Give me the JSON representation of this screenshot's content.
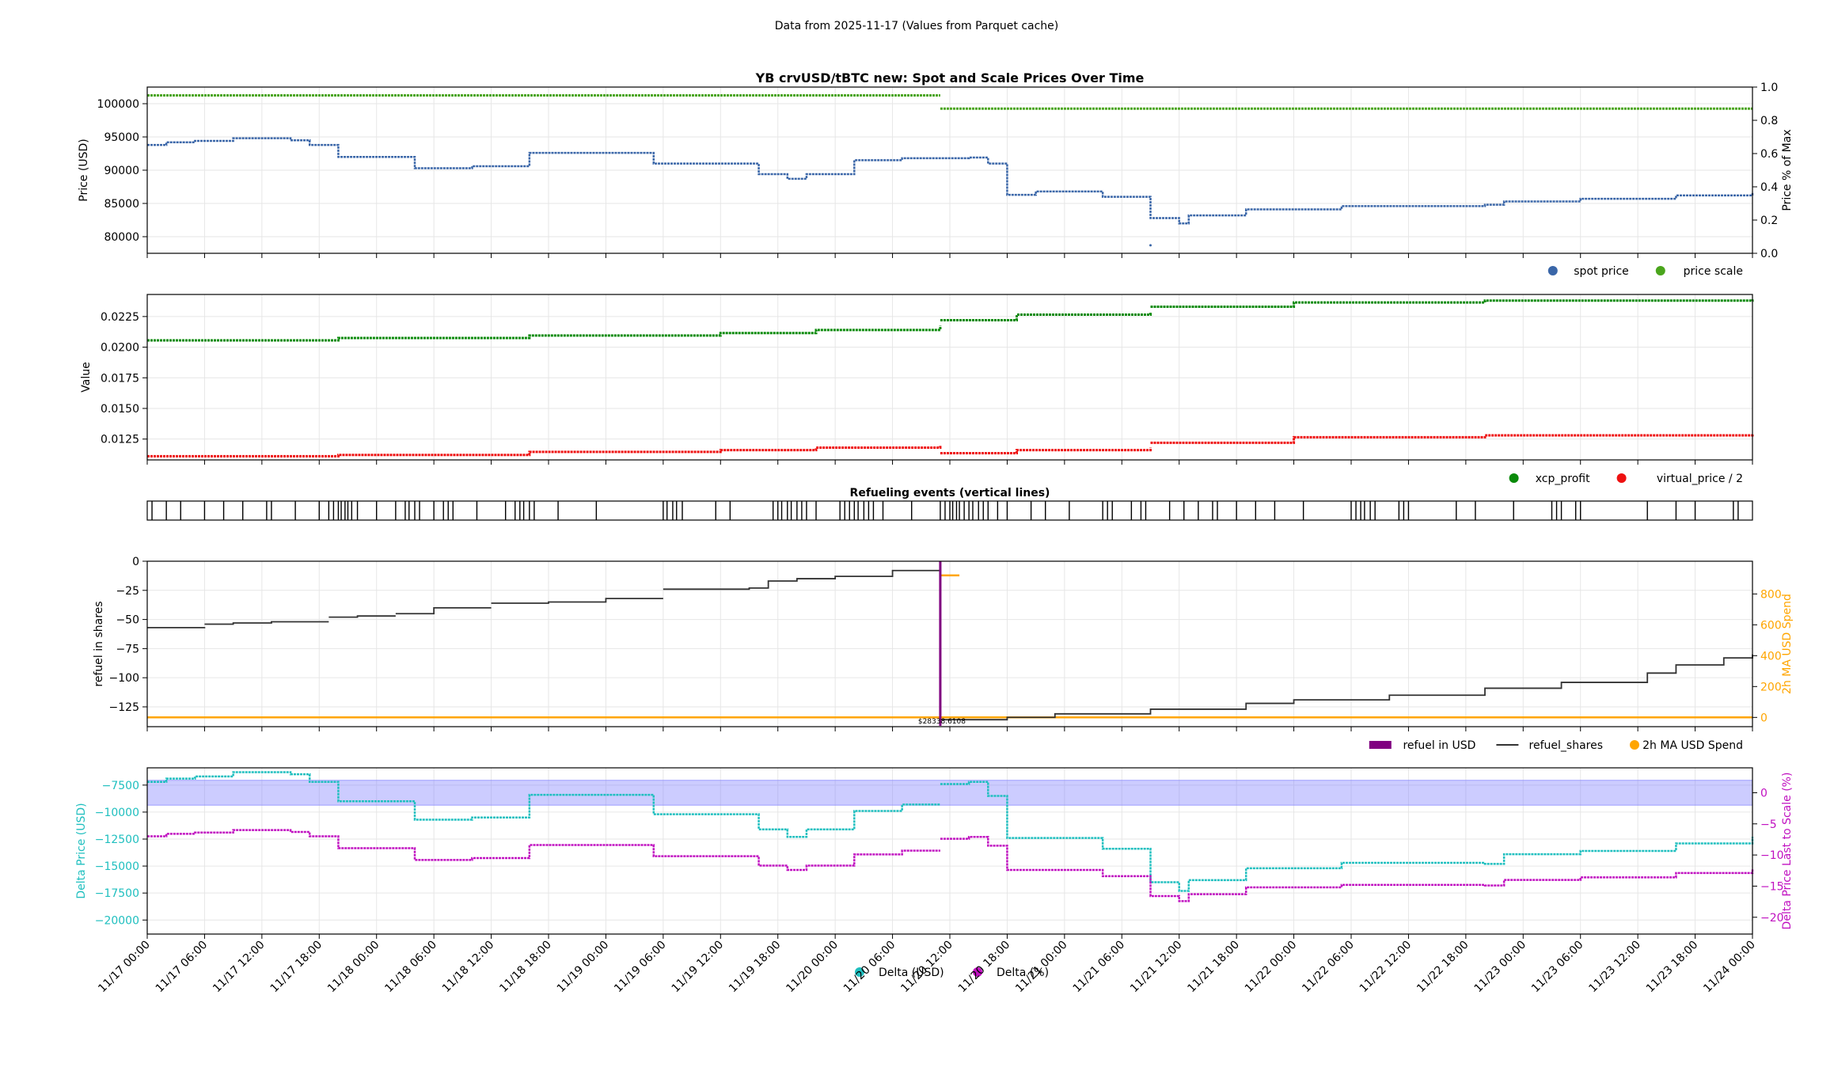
{
  "suptitle": "Data from 2025-11-17 (Values from Parquet cache)",
  "colors": {
    "spot": "#3a66a8",
    "scale": "#4aa51c",
    "xcp": "#0a8a0a",
    "vp": "#ee1111",
    "refuel_usd": "#800080",
    "shares": "#333333",
    "ma": "#ffa500",
    "delta_usd": "#1fbfbf",
    "delta_pct": "#c010c0",
    "band": "#8080ff",
    "grid": "#e6e6e6"
  },
  "x_ticks": [
    "11/17 00:00",
    "11/17 06:00",
    "11/17 12:00",
    "11/17 18:00",
    "11/18 00:00",
    "11/18 06:00",
    "11/18 12:00",
    "11/18 18:00",
    "11/19 00:00",
    "11/19 06:00",
    "11/19 12:00",
    "11/19 18:00",
    "11/20 00:00",
    "11/20 06:00",
    "11/20 12:00",
    "11/20 18:00",
    "11/21 00:00",
    "11/21 06:00",
    "11/21 12:00",
    "11/21 18:00",
    "11/22 00:00",
    "11/22 06:00",
    "11/22 12:00",
    "11/22 18:00",
    "11/23 00:00",
    "11/23 06:00",
    "11/23 12:00",
    "11/23 18:00",
    "11/24 00:00"
  ],
  "chart_data": [
    {
      "type": "scatter",
      "title": "YB crvUSD/tBTC new: Spot and Scale Prices Over Time",
      "ylabel": "Price (USD)",
      "y2label": "Price % of Max",
      "ylim": [
        77500,
        102500
      ],
      "y2lim": [
        0.0,
        1.0
      ],
      "yticks": [
        "80000",
        "85000",
        "90000",
        "95000",
        "100000"
      ],
      "y2ticks": [
        "0.0",
        "0.2",
        "0.4",
        "0.6",
        "0.8",
        "1.0"
      ],
      "legend": [
        "spot price",
        "price scale"
      ],
      "legend_position": "lower-right",
      "series": [
        {
          "name": "spot price",
          "axis": "left",
          "values": [
            [
              0,
              93800
            ],
            [
              2,
              94200
            ],
            [
              5,
              94400
            ],
            [
              9,
              94800
            ],
            [
              15,
              94500
            ],
            [
              17,
              93800
            ],
            [
              20,
              92000
            ],
            [
              28,
              90300
            ],
            [
              34,
              90600
            ],
            [
              40,
              92600
            ],
            [
              53,
              91000
            ],
            [
              64,
              89400
            ],
            [
              67,
              88700
            ],
            [
              69,
              89400
            ],
            [
              74,
              91500
            ],
            [
              79,
              91800
            ],
            [
              86,
              91900
            ],
            [
              88,
              91000
            ],
            [
              90,
              86300
            ],
            [
              93,
              86800
            ],
            [
              100,
              86000
            ],
            [
              105,
              82800
            ],
            [
              108,
              82000
            ],
            [
              109,
              83200
            ],
            [
              115,
              84100
            ],
            [
              125,
              84600
            ],
            [
              140,
              84800
            ],
            [
              142,
              85300
            ],
            [
              150,
              85700
            ],
            [
              160,
              86200
            ],
            [
              168,
              86700
            ]
          ]
        },
        {
          "name": "price scale",
          "axis": "right",
          "values": [
            [
              0,
              0.95
            ],
            [
              83,
              0.95
            ],
            [
              83,
              0.87
            ],
            [
              168,
              0.87
            ]
          ]
        }
      ]
    },
    {
      "type": "scatter",
      "ylabel": "Value",
      "ylim": [
        0.0108,
        0.0243
      ],
      "yticks": [
        "0.0125",
        "0.0150",
        "0.0175",
        "0.0200",
        "0.0225"
      ],
      "legend": [
        "xcp_profit",
        "virtual_price / 2"
      ],
      "legend_position": "lower-right",
      "series": [
        {
          "name": "xcp_profit",
          "values": [
            [
              0,
              0.02055
            ],
            [
              20,
              0.02075
            ],
            [
              40,
              0.02095
            ],
            [
              60,
              0.02115
            ],
            [
              70,
              0.0214
            ],
            [
              83,
              0.02175
            ],
            [
              83,
              0.0222
            ],
            [
              91,
              0.02265
            ],
            [
              105,
              0.02285
            ],
            [
              105,
              0.0233
            ],
            [
              120,
              0.02365
            ],
            [
              140,
              0.0238
            ],
            [
              168,
              0.0239
            ]
          ]
        },
        {
          "name": "virtual_price / 2",
          "values": [
            [
              0,
              0.0111
            ],
            [
              20,
              0.0112
            ],
            [
              40,
              0.01145
            ],
            [
              60,
              0.0116
            ],
            [
              70,
              0.0118
            ],
            [
              83,
              0.012
            ],
            [
              83,
              0.01135
            ],
            [
              91,
              0.0116
            ],
            [
              105,
              0.0118
            ],
            [
              105,
              0.0122
            ],
            [
              120,
              0.01265
            ],
            [
              140,
              0.0128
            ],
            [
              168,
              0.0129
            ]
          ]
        }
      ]
    },
    {
      "type": "event_lines",
      "title": "Refueling events (vertical lines)",
      "events_hours": [
        0.5,
        2,
        3.5,
        6,
        8,
        10,
        12.5,
        13,
        15.5,
        18,
        19,
        19.5,
        20,
        20.3,
        20.7,
        21,
        21.4,
        22,
        24,
        26,
        27,
        27.4,
        28,
        28.5,
        30,
        31,
        31.5,
        32,
        34.5,
        37.5,
        38.5,
        39,
        39.4,
        40,
        40.5,
        43,
        47,
        54,
        54.4,
        55,
        55.4,
        56,
        59.5,
        61,
        65.5,
        66,
        66.4,
        67,
        67.4,
        68,
        68.5,
        69,
        70,
        72.5,
        73,
        73.5,
        74,
        74.4,
        75,
        75.5,
        76,
        77,
        80,
        83,
        83.5,
        84,
        84.3,
        84.7,
        85,
        85.5,
        86,
        86.4,
        87,
        87.5,
        88,
        89,
        90,
        92.5,
        94,
        96.5,
        100,
        100.5,
        101,
        103,
        104,
        104.5,
        107,
        108.5,
        110,
        111.5,
        112,
        114,
        116,
        118,
        121,
        126,
        126.5,
        127,
        127.4,
        128,
        128.5,
        131,
        131.5,
        132,
        137,
        139,
        143,
        147,
        147.5,
        148,
        149.5,
        150,
        157,
        160,
        162,
        166,
        166.5
      ]
    },
    {
      "type": "line",
      "ylabel": "refuel in shares",
      "y2label": "2h MA USD Spend",
      "ylim": [
        -142,
        0
      ],
      "y2lim": [
        -60,
        1012
      ],
      "yticks": [
        "−125",
        "−100",
        "−75",
        "−50",
        "−25",
        "0"
      ],
      "y2ticks": [
        "0",
        "200",
        "400",
        "600",
        "800"
      ],
      "legend": [
        "refuel in USD",
        "refuel_shares",
        "2h MA USD Spend"
      ],
      "legend_position": "lower-right",
      "annotation": "$28338.6108",
      "bar": {
        "name": "refuel in USD",
        "x": 83,
        "value": 28338.6108
      },
      "series": [
        {
          "name": "refuel_shares",
          "axis": "left",
          "values": [
            [
              0,
              -57
            ],
            [
              6,
              -56.5
            ],
            [
              6,
              -54
            ],
            [
              9,
              -53
            ],
            [
              13,
              -52
            ],
            [
              19,
              -52
            ],
            [
              19,
              -48
            ],
            [
              22,
              -47
            ],
            [
              26,
              -47
            ],
            [
              26,
              -45
            ],
            [
              30,
              -40
            ],
            [
              36,
              -40
            ],
            [
              36,
              -36
            ],
            [
              42,
              -35
            ],
            [
              48,
              -32
            ],
            [
              54,
              -32
            ],
            [
              54,
              -24
            ],
            [
              63,
              -23
            ],
            [
              65,
              -17
            ],
            [
              68,
              -15
            ],
            [
              72,
              -13
            ],
            [
              78,
              -8
            ],
            [
              83,
              -7
            ],
            [
              83,
              -136
            ],
            [
              90,
              -134
            ],
            [
              95,
              -131
            ],
            [
              105,
              -127
            ],
            [
              115,
              -122
            ],
            [
              120,
              -119
            ],
            [
              130,
              -115
            ],
            [
              140,
              -109
            ],
            [
              148,
              -104
            ],
            [
              157,
              -96
            ],
            [
              160,
              -89
            ],
            [
              165,
              -83
            ],
            [
              168,
              -80
            ]
          ]
        },
        {
          "name": "2h MA USD Spend",
          "axis": "right",
          "values": [
            [
              0,
              0
            ],
            [
              168,
              0
            ]
          ]
        },
        {
          "name": "2h MA USD Spend (segment)",
          "axis": "right",
          "values": [
            [
              83,
              920
            ],
            [
              85,
              920
            ]
          ]
        }
      ]
    },
    {
      "type": "scatter",
      "ylabel": "Delta Price (USD)",
      "y2label": "Delta Price Last to Scale (%)",
      "ylim": [
        -21300,
        -5900
      ],
      "y2lim": [
        -22.7,
        4
      ],
      "yticks": [
        "−20000",
        "−17500",
        "−15000",
        "−12500",
        "−10000",
        "−7500"
      ],
      "y2ticks": [
        "−20",
        "−15",
        "−10",
        "−5",
        "0"
      ],
      "band_pct": [
        -2,
        2
      ],
      "legend": [
        "Delta (USD)",
        "Delta (%)"
      ],
      "legend_position": "bottom-center",
      "series": [
        {
          "name": "Delta (USD)",
          "axis": "left",
          "values": [
            [
              0,
              -7200
            ],
            [
              2,
              -6900
            ],
            [
              5,
              -6700
            ],
            [
              9,
              -6300
            ],
            [
              15,
              -6500
            ],
            [
              17,
              -7200
            ],
            [
              20,
              -9000
            ],
            [
              28,
              -10700
            ],
            [
              34,
              -10500
            ],
            [
              40,
              -8400
            ],
            [
              53,
              -10200
            ],
            [
              64,
              -11600
            ],
            [
              67,
              -12300
            ],
            [
              69,
              -11600
            ],
            [
              74,
              -9900
            ],
            [
              79,
              -9300
            ],
            [
              83,
              -9300
            ],
            [
              83,
              -7400
            ],
            [
              86,
              -7200
            ],
            [
              88,
              -8500
            ],
            [
              90,
              -12400
            ],
            [
              93,
              -12400
            ],
            [
              100,
              -13400
            ],
            [
              105,
              -16500
            ],
            [
              108,
              -17300
            ],
            [
              109,
              -16300
            ],
            [
              115,
              -15200
            ],
            [
              125,
              -14700
            ],
            [
              140,
              -14800
            ],
            [
              142,
              -13900
            ],
            [
              150,
              -13600
            ],
            [
              160,
              -12900
            ],
            [
              168,
              -12300
            ]
          ]
        },
        {
          "name": "Delta (%)",
          "axis": "right",
          "values": [
            [
              0,
              -7
            ],
            [
              2,
              -6.6
            ],
            [
              5,
              -6.4
            ],
            [
              9,
              -6
            ],
            [
              15,
              -6.3
            ],
            [
              17,
              -7
            ],
            [
              20,
              -8.9
            ],
            [
              28,
              -10.8
            ],
            [
              34,
              -10.5
            ],
            [
              40,
              -8.4
            ],
            [
              53,
              -10.2
            ],
            [
              64,
              -11.7
            ],
            [
              67,
              -12.4
            ],
            [
              69,
              -11.7
            ],
            [
              74,
              -9.9
            ],
            [
              79,
              -9.3
            ],
            [
              83,
              -9.3
            ],
            [
              83,
              -7.4
            ],
            [
              86,
              -7.1
            ],
            [
              88,
              -8.5
            ],
            [
              90,
              -12.4
            ],
            [
              93,
              -12.4
            ],
            [
              100,
              -13.4
            ],
            [
              105,
              -16.6
            ],
            [
              108,
              -17.4
            ],
            [
              109,
              -16.3
            ],
            [
              115,
              -15.2
            ],
            [
              125,
              -14.8
            ],
            [
              140,
              -14.9
            ],
            [
              142,
              -14
            ],
            [
              150,
              -13.6
            ],
            [
              160,
              -12.9
            ],
            [
              168,
              -12.3
            ]
          ]
        }
      ]
    }
  ]
}
